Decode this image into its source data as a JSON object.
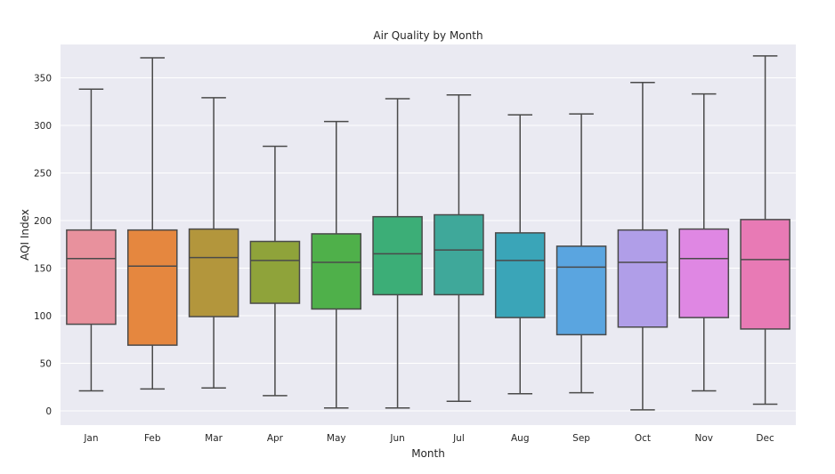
{
  "chart_data": {
    "type": "box",
    "title": "Air Quality by Month",
    "xlabel": "Month",
    "ylabel": "AQI Index",
    "ylim": [
      -15,
      385
    ],
    "yticks": [
      "0",
      "50",
      "100",
      "150",
      "200",
      "250",
      "300",
      "350"
    ],
    "grid": true,
    "legend": "none",
    "categories": [
      "Jan",
      "Feb",
      "Mar",
      "Apr",
      "May",
      "Jun",
      "Jul",
      "Aug",
      "Sep",
      "Oct",
      "Nov",
      "Dec"
    ],
    "boxes": [
      {
        "min": 21,
        "q1": 91,
        "median": 160,
        "q3": 190,
        "max": 338,
        "color": "#e8919d"
      },
      {
        "min": 23,
        "q1": 69,
        "median": 152,
        "q3": 190,
        "max": 371,
        "color": "#e5873f"
      },
      {
        "min": 24,
        "q1": 99,
        "median": 161,
        "q3": 191,
        "max": 329,
        "color": "#b3963c"
      },
      {
        "min": 16,
        "q1": 113,
        "median": 158,
        "q3": 178,
        "max": 278,
        "color": "#8fa33a"
      },
      {
        "min": 3,
        "q1": 107,
        "median": 156,
        "q3": 186,
        "max": 304,
        "color": "#4fb04a"
      },
      {
        "min": 3,
        "q1": 122,
        "median": 165,
        "q3": 204,
        "max": 328,
        "color": "#3cae77"
      },
      {
        "min": 10,
        "q1": 122,
        "median": 169,
        "q3": 206,
        "max": 332,
        "color": "#3fa89a"
      },
      {
        "min": 18,
        "q1": 98,
        "median": 158,
        "q3": 187,
        "max": 311,
        "color": "#3aa5b8"
      },
      {
        "min": 19,
        "q1": 80,
        "median": 151,
        "q3": 173,
        "max": 312,
        "color": "#5aa5e0"
      },
      {
        "min": 1,
        "q1": 88,
        "median": 156,
        "q3": 190,
        "max": 345,
        "color": "#b09ee8"
      },
      {
        "min": 21,
        "q1": 98,
        "median": 160,
        "q3": 191,
        "max": 333,
        "color": "#df87e3"
      },
      {
        "min": 7,
        "q1": 86,
        "median": 159,
        "q3": 201,
        "max": 373,
        "color": "#e87ab5"
      }
    ]
  }
}
